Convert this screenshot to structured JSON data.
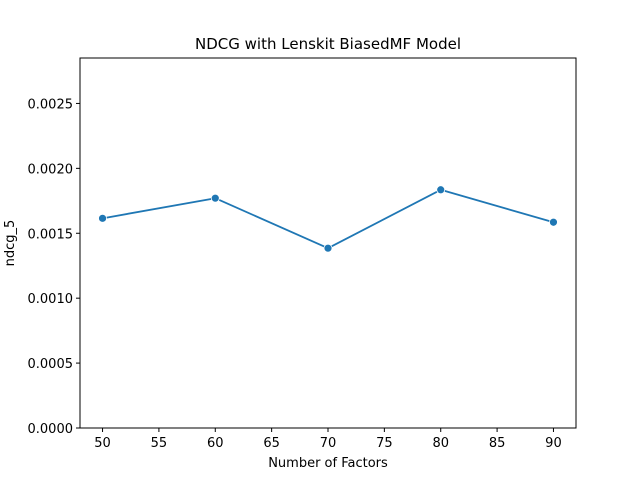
{
  "chart_data": {
    "type": "line",
    "title": "NDCG with Lenskit BiasedMF Model",
    "xlabel": "Number of Factors",
    "ylabel": "ndcg_5",
    "x": [
      50,
      60,
      70,
      80,
      90
    ],
    "series": [
      {
        "values": [
          0.001615,
          0.00177,
          0.001385,
          0.001835,
          0.001585
        ]
      }
    ],
    "xlim": [
      48,
      92
    ],
    "ylim": [
      0,
      0.00285
    ],
    "xticks": [
      50,
      55,
      60,
      65,
      70,
      75,
      80,
      85,
      90
    ],
    "xtick_labels": [
      "50",
      "55",
      "60",
      "65",
      "70",
      "75",
      "80",
      "85",
      "90"
    ],
    "yticks": [
      0,
      0.0005,
      0.001,
      0.0015,
      0.002,
      0.0025
    ],
    "ytick_labels": [
      "0.0000",
      "0.0005",
      "0.0010",
      "0.0015",
      "0.0020",
      "0.0025"
    ],
    "grid": false,
    "line_color": "#1f77b4",
    "marker": "circle"
  }
}
